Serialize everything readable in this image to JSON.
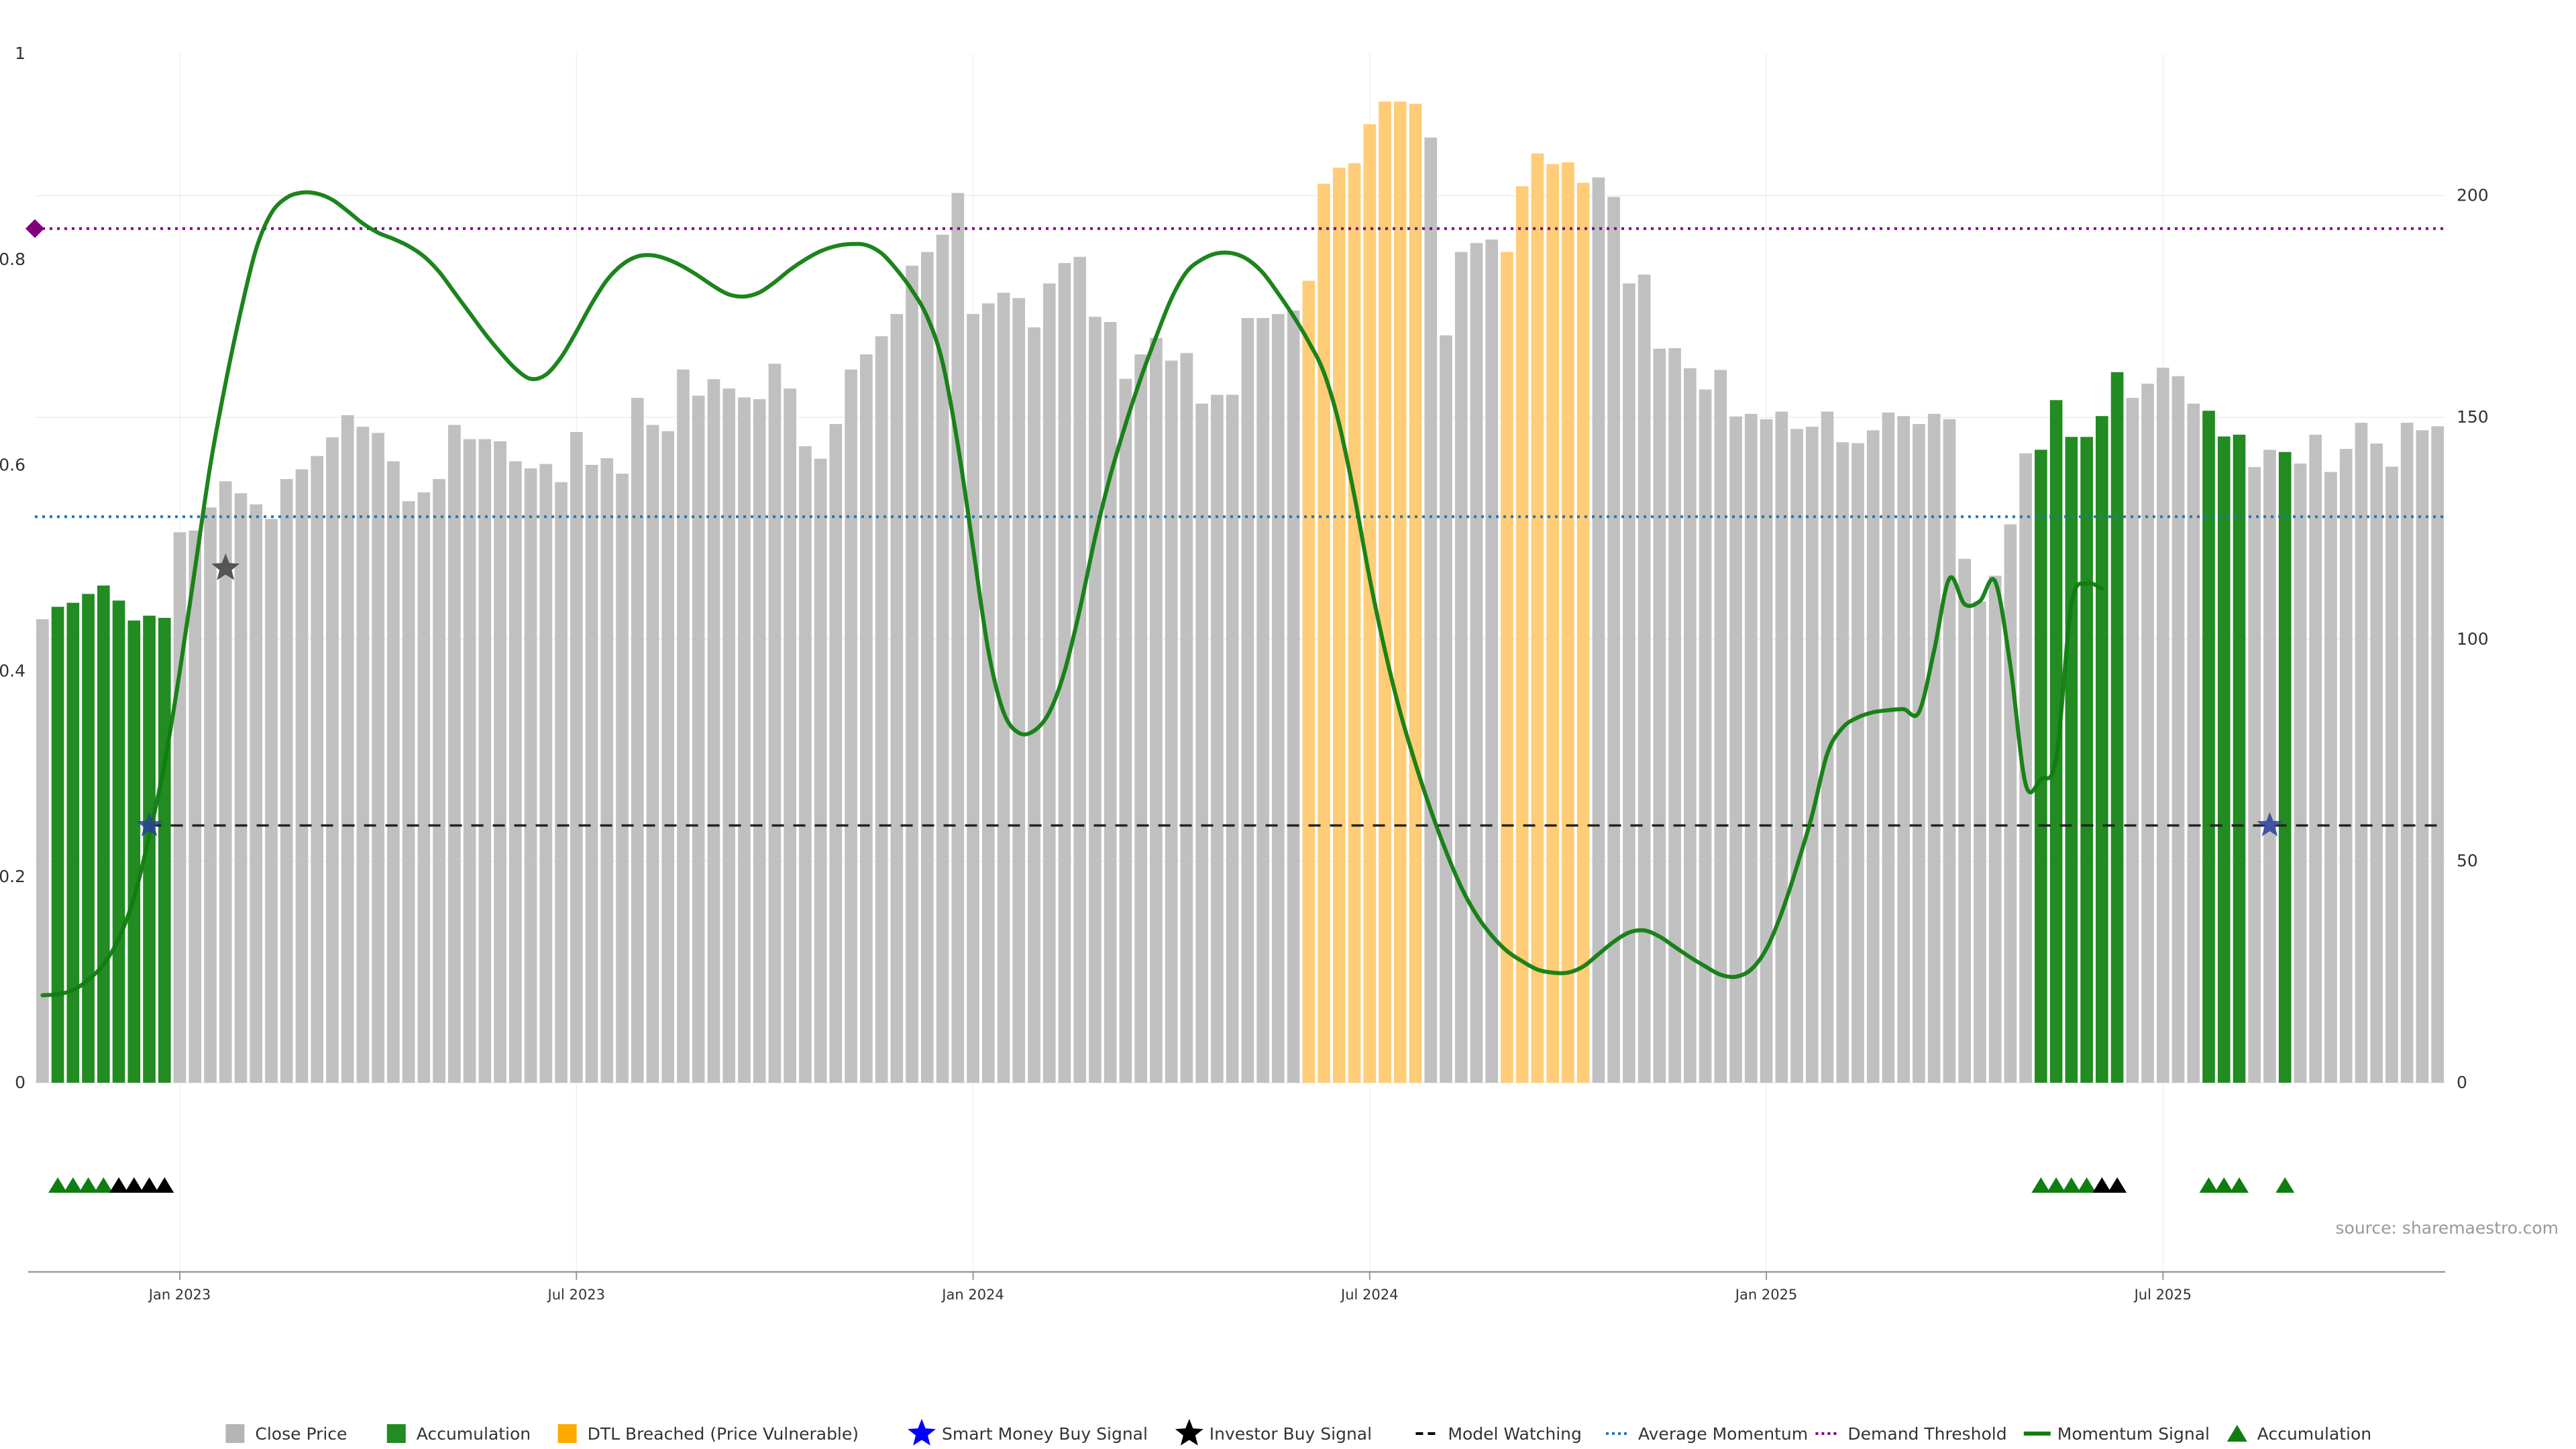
{
  "chart_data": {
    "type": "bar",
    "title": "",
    "xlabel": "",
    "ylabel": "",
    "source": "source: sharemaestro.com",
    "left_axis": {
      "ylim": [
        0,
        1
      ],
      "ticks": [
        "0",
        "0.2",
        "0.4",
        "0.6",
        "0.8",
        "1"
      ]
    },
    "right_axis": {
      "ylim": [
        0,
        232
      ],
      "ticks": [
        "0",
        "50",
        "100",
        "150",
        "200"
      ]
    },
    "x_ticks": [
      "Jan 2023",
      "Jul 2023",
      "Jan 2024",
      "Jul 2024",
      "Jan 2025",
      "Jul 2025"
    ],
    "x_tick_weeks": [
      9,
      35,
      61,
      87,
      113,
      139
    ],
    "grid": true,
    "legend_position": "bottom",
    "colors": {
      "close_price": "#c0c0c0",
      "accumulation": "#228b22",
      "dtl_breached": "#ffcc77",
      "momentum": "#107d10",
      "average_momentum": "#1f77b4",
      "demand_threshold": "#800080",
      "model_watching": "#000000",
      "smart_money": "#0000ff",
      "investor_buy": "#000000"
    },
    "series": [
      {
        "name": "Close Price",
        "axis": "right",
        "values": [
          104.5,
          107.3,
          108.2,
          110.2,
          112.1,
          108.7,
          104.2,
          105.3,
          104.8,
          124.1,
          124.5,
          129.7,
          135.6,
          132.9,
          130.4,
          127.1,
          136.1,
          138.3,
          141.3,
          145.5,
          150.5,
          147.9,
          146.5,
          140.1,
          131.1,
          133.1,
          136.1,
          148.3,
          145.1,
          145.1,
          144.6,
          140.1,
          138.5,
          139.5,
          135.4,
          146.7,
          139.3,
          140.8,
          137.3,
          154.4,
          148.3,
          146.9,
          160.8,
          154.9,
          158.6,
          156.5,
          154.5,
          154.1,
          162.1,
          156.5,
          143.5,
          140.7,
          148.5,
          160.8,
          164.2,
          168.3,
          173.3,
          184.2,
          187.3,
          191.2,
          200.6,
          173.3,
          175.7,
          178.1,
          176.9,
          170.3,
          180.2,
          184.8,
          186.2,
          172.7,
          171.5,
          158.7,
          164.2,
          167.9,
          162.8,
          164.5,
          153.1,
          155.1,
          155.1,
          172.4,
          172.4,
          173.3,
          174.1,
          180.8,
          202.7,
          206.3,
          207.3,
          216.1,
          221.2,
          221.2,
          220.7,
          213.1,
          168.5,
          187.3,
          189.3,
          190.1,
          187.3,
          202.1,
          209.5,
          207.1,
          207.5,
          202.9,
          204.1,
          199.7,
          180.2,
          182.2,
          165.5,
          165.6,
          161.1,
          156.3,
          160.7,
          150.2,
          150.8,
          149.6,
          151.3,
          147.4,
          147.9,
          151.3,
          144.4,
          144.2,
          147.1,
          151.1,
          150.3,
          148.5,
          150.8,
          149.6,
          118.1,
          108.5,
          114.3,
          125.9,
          141.9,
          142.7,
          153.9,
          145.6,
          145.6,
          150.3,
          160.2,
          154.4,
          157.6,
          161.2,
          159.3,
          153.1,
          151.5,
          145.7,
          146.1,
          138.8,
          142.7,
          142.2,
          139.6,
          146.1,
          137.7,
          142.9,
          148.8,
          144.1,
          138.9,
          148.8,
          147.1,
          148.0
        ]
      },
      {
        "name": "Accumulation",
        "axis": "right",
        "weeks": [
          1,
          2,
          3,
          4,
          5,
          6,
          7,
          8,
          131,
          132,
          133,
          134,
          135,
          136,
          142,
          143,
          144,
          147
        ]
      },
      {
        "name": "DTL Breached (Price Vulnerable)",
        "axis": "right",
        "weeks": [
          83,
          84,
          85,
          86,
          87,
          88,
          89,
          90,
          96,
          97,
          98,
          99,
          100,
          101
        ]
      },
      {
        "name": "Momentum Signal",
        "axis": "left",
        "points": [
          [
            0,
            0.085
          ],
          [
            1,
            0.086
          ],
          [
            2,
            0.09
          ],
          [
            3,
            0.1
          ],
          [
            4,
            0.115
          ],
          [
            5,
            0.14
          ],
          [
            6,
            0.18
          ],
          [
            7,
            0.24
          ],
          [
            8,
            0.31
          ],
          [
            9,
            0.4
          ],
          [
            10,
            0.5
          ],
          [
            11,
            0.6
          ],
          [
            12,
            0.68
          ],
          [
            13,
            0.75
          ],
          [
            14,
            0.81
          ],
          [
            15,
            0.845
          ],
          [
            16,
            0.86
          ],
          [
            17,
            0.865
          ],
          [
            18,
            0.864
          ],
          [
            19,
            0.858
          ],
          [
            20,
            0.847
          ],
          [
            21,
            0.835
          ],
          [
            22,
            0.826
          ],
          [
            23,
            0.82
          ],
          [
            24,
            0.813
          ],
          [
            25,
            0.803
          ],
          [
            26,
            0.788
          ],
          [
            27,
            0.768
          ],
          [
            28,
            0.748
          ],
          [
            29,
            0.728
          ],
          [
            30,
            0.71
          ],
          [
            31,
            0.694
          ],
          [
            32,
            0.684
          ],
          [
            33,
            0.688
          ],
          [
            34,
            0.705
          ],
          [
            35,
            0.73
          ],
          [
            36,
            0.757
          ],
          [
            37,
            0.78
          ],
          [
            38,
            0.795
          ],
          [
            39,
            0.803
          ],
          [
            40,
            0.804
          ],
          [
            41,
            0.8
          ],
          [
            42,
            0.793
          ],
          [
            43,
            0.784
          ],
          [
            44,
            0.774
          ],
          [
            45,
            0.766
          ],
          [
            46,
            0.764
          ],
          [
            47,
            0.768
          ],
          [
            48,
            0.778
          ],
          [
            49,
            0.79
          ],
          [
            50,
            0.8
          ],
          [
            51,
            0.808
          ],
          [
            52,
            0.813
          ],
          [
            53,
            0.815
          ],
          [
            54,
            0.814
          ],
          [
            55,
            0.806
          ],
          [
            56,
            0.79
          ],
          [
            57,
            0.77
          ],
          [
            58,
            0.744
          ],
          [
            59,
            0.7
          ],
          [
            60,
            0.62
          ],
          [
            61,
            0.52
          ],
          [
            62,
            0.42
          ],
          [
            63,
            0.36
          ],
          [
            64,
            0.34
          ],
          [
            65,
            0.342
          ],
          [
            66,
            0.36
          ],
          [
            67,
            0.4
          ],
          [
            68,
            0.46
          ],
          [
            69,
            0.53
          ],
          [
            70,
            0.59
          ],
          [
            71,
            0.64
          ],
          [
            72,
            0.685
          ],
          [
            73,
            0.725
          ],
          [
            74,
            0.762
          ],
          [
            75,
            0.788
          ],
          [
            76,
            0.8
          ],
          [
            77,
            0.806
          ],
          [
            78,
            0.806
          ],
          [
            79,
            0.8
          ],
          [
            80,
            0.787
          ],
          [
            81,
            0.767
          ],
          [
            82,
            0.745
          ],
          [
            83,
            0.72
          ],
          [
            84,
            0.69
          ],
          [
            85,
            0.64
          ],
          [
            86,
            0.57
          ],
          [
            87,
            0.49
          ],
          [
            88,
            0.42
          ],
          [
            89,
            0.36
          ],
          [
            90,
            0.31
          ],
          [
            91,
            0.265
          ],
          [
            92,
            0.225
          ],
          [
            93,
            0.19
          ],
          [
            94,
            0.163
          ],
          [
            95,
            0.143
          ],
          [
            96,
            0.128
          ],
          [
            97,
            0.118
          ],
          [
            98,
            0.11
          ],
          [
            99,
            0.107
          ],
          [
            100,
            0.107
          ],
          [
            101,
            0.113
          ],
          [
            102,
            0.125
          ],
          [
            103,
            0.137
          ],
          [
            104,
            0.146
          ],
          [
            105,
            0.148
          ],
          [
            106,
            0.142
          ],
          [
            107,
            0.132
          ],
          [
            108,
            0.122
          ],
          [
            109,
            0.113
          ],
          [
            110,
            0.105
          ],
          [
            111,
            0.103
          ],
          [
            112,
            0.11
          ],
          [
            113,
            0.13
          ],
          [
            114,
            0.165
          ],
          [
            115,
            0.21
          ],
          [
            116,
            0.26
          ],
          [
            117,
            0.32
          ],
          [
            118,
            0.345
          ],
          [
            119,
            0.355
          ],
          [
            120,
            0.36
          ],
          [
            121,
            0.362
          ],
          [
            122,
            0.363
          ],
          [
            123,
            0.36
          ],
          [
            124,
            0.42
          ],
          [
            125,
            0.49
          ],
          [
            126,
            0.465
          ],
          [
            127,
            0.468
          ],
          [
            128,
            0.487
          ],
          [
            129,
            0.405
          ],
          [
            130,
            0.29
          ],
          [
            131,
            0.295
          ],
          [
            132,
            0.315
          ],
          [
            133,
            0.465
          ],
          [
            134,
            0.485
          ],
          [
            135,
            0.48
          ]
        ]
      },
      {
        "name": "Average Momentum",
        "axis": "left",
        "value": 0.55
      },
      {
        "name": "Demand Threshold",
        "axis": "left",
        "value": 0.83
      },
      {
        "name": "Model Watching",
        "axis": "left",
        "value": 0.25
      },
      {
        "name": "Smart Money Buy Signal",
        "axis": "left",
        "points": [
          [
            7,
            0.25
          ],
          [
            146,
            0.25
          ]
        ]
      },
      {
        "name": "Investor Buy Signal",
        "axis": "left",
        "points": [
          [
            12,
            0.5
          ]
        ]
      }
    ],
    "signal_markers": [
      {
        "week": 1,
        "color": "green"
      },
      {
        "week": 2,
        "color": "green"
      },
      {
        "week": 3,
        "color": "green"
      },
      {
        "week": 4,
        "color": "green"
      },
      {
        "week": 5,
        "color": "black"
      },
      {
        "week": 6,
        "color": "black"
      },
      {
        "week": 7,
        "color": "black"
      },
      {
        "week": 8,
        "color": "black"
      },
      {
        "week": 131,
        "color": "green"
      },
      {
        "week": 132,
        "color": "green"
      },
      {
        "week": 133,
        "color": "green"
      },
      {
        "week": 134,
        "color": "green"
      },
      {
        "week": 135,
        "color": "black"
      },
      {
        "week": 136,
        "color": "black"
      },
      {
        "week": 142,
        "color": "green"
      },
      {
        "week": 143,
        "color": "green"
      },
      {
        "week": 144,
        "color": "green"
      },
      {
        "week": 147,
        "color": "green"
      }
    ],
    "legend": [
      {
        "label": "Close Price",
        "symbol": "square",
        "color": "#b5b5b5"
      },
      {
        "label": "Accumulation",
        "symbol": "square",
        "color": "#228b22"
      },
      {
        "label": "DTL Breached (Price Vulnerable)",
        "symbol": "square",
        "color": "#ffaa00"
      },
      {
        "label": "Smart Money Buy Signal",
        "symbol": "star",
        "color": "#0000ff"
      },
      {
        "label": "Investor Buy Signal",
        "symbol": "star",
        "color": "#000000"
      },
      {
        "label": "Model Watching",
        "symbol": "dash",
        "color": "#000000"
      },
      {
        "label": "Average Momentum",
        "symbol": "dot",
        "color": "#1f77b4"
      },
      {
        "label": "Demand Threshold",
        "symbol": "dot",
        "color": "#800080"
      },
      {
        "label": "Momentum Signal",
        "symbol": "line",
        "color": "#107d10"
      },
      {
        "label": "Accumulation",
        "symbol": "triangle",
        "color": "#107d10"
      }
    ]
  }
}
